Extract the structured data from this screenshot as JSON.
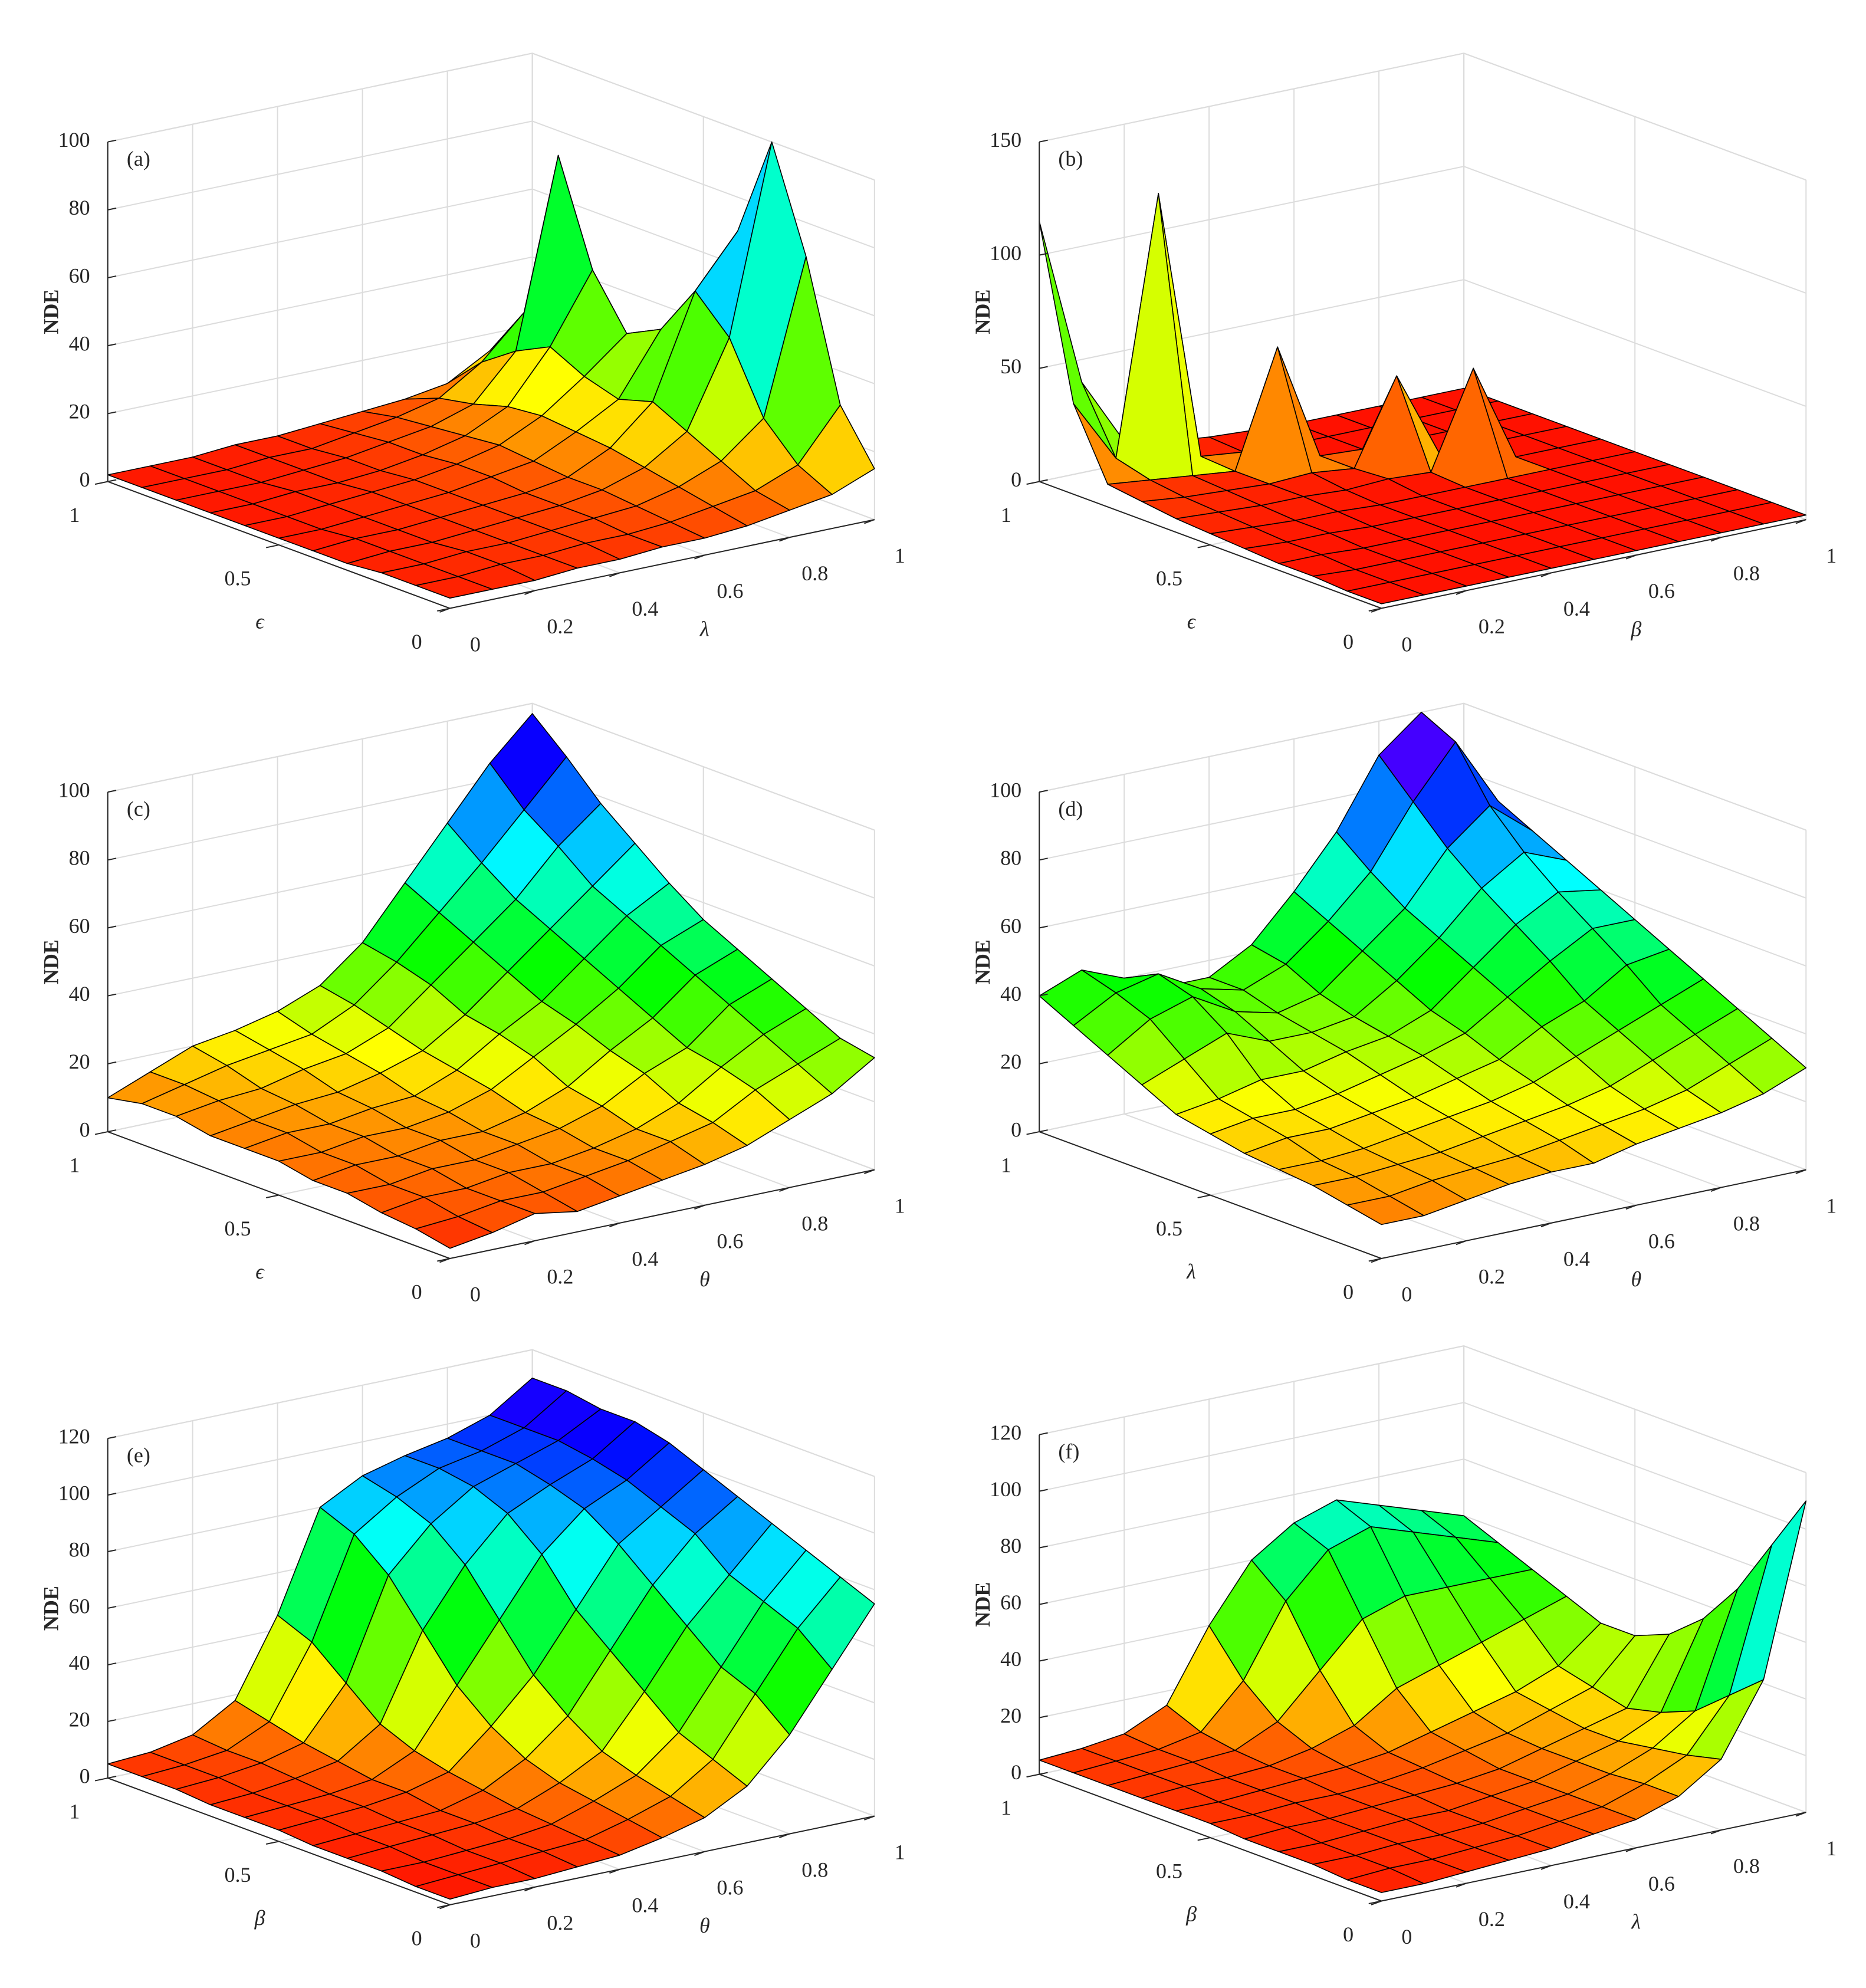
{
  "chart_data": [
    {
      "type": "surface",
      "panel_label": "(a)",
      "zlabel": "NDE",
      "xlabel": "λ",
      "ylabel": "ϵ",
      "colormap": "hsv",
      "grid": true,
      "xlim": [
        0,
        1
      ],
      "ylim": [
        0,
        1
      ],
      "zlim": [
        0,
        100
      ],
      "xticks": [
        0,
        0.2,
        0.4,
        0.6,
        0.8,
        1
      ],
      "yticks": [
        0,
        0.5,
        1
      ],
      "zticks": [
        0,
        20,
        40,
        60,
        80,
        100
      ],
      "x": [
        0,
        0.1,
        0.2,
        0.3,
        0.4,
        0.5,
        0.6,
        0.7,
        0.8,
        0.9,
        1
      ],
      "y": [
        0,
        0.1,
        0.2,
        0.3,
        0.4,
        0.5,
        0.6,
        0.7,
        0.8,
        0.9,
        1
      ],
      "z": [
        [
          3,
          3,
          3,
          4,
          4,
          5,
          5,
          6,
          8,
          10,
          15
        ],
        [
          3,
          3,
          4,
          4,
          5,
          5,
          6,
          8,
          10,
          15,
          30
        ],
        [
          3,
          3,
          4,
          4,
          5,
          6,
          7,
          10,
          15,
          25,
          70
        ],
        [
          2,
          3,
          3,
          4,
          5,
          6,
          8,
          12,
          20,
          45,
          100
        ],
        [
          2,
          3,
          3,
          4,
          5,
          6,
          8,
          14,
          25,
          55,
          70
        ],
        [
          2,
          2,
          3,
          4,
          5,
          7,
          9,
          15,
          22,
          40,
          45
        ],
        [
          2,
          2,
          3,
          4,
          5,
          7,
          10,
          16,
          25,
          35,
          25
        ],
        [
          2,
          2,
          3,
          3,
          4,
          6,
          9,
          15,
          30,
          50,
          15
        ],
        [
          2,
          2,
          2,
          3,
          4,
          6,
          8,
          12,
          25,
          80,
          10
        ],
        [
          2,
          2,
          2,
          3,
          3,
          5,
          7,
          10,
          18,
          30,
          8
        ],
        [
          2,
          2,
          2,
          3,
          3,
          4,
          5,
          6,
          8,
          15,
          5
        ]
      ]
    },
    {
      "type": "surface",
      "panel_label": "(b)",
      "zlabel": "NDE",
      "xlabel": "β",
      "ylabel": "ϵ",
      "colormap": "hsv",
      "grid": true,
      "xlim": [
        0,
        1
      ],
      "ylim": [
        0,
        1
      ],
      "zlim": [
        0,
        150
      ],
      "xticks": [
        0,
        0.2,
        0.4,
        0.6,
        0.8,
        1
      ],
      "yticks": [
        0,
        0.5,
        1
      ],
      "zticks": [
        0,
        50,
        100,
        150
      ],
      "x": [
        0,
        0.1,
        0.2,
        0.3,
        0.4,
        0.5,
        0.6,
        0.7,
        0.8,
        0.9,
        1
      ],
      "y": [
        0,
        0.1,
        0.2,
        0.3,
        0.4,
        0.5,
        0.6,
        0.7,
        0.8,
        0.9,
        1
      ],
      "z": [
        [
          2,
          2,
          2,
          2,
          2,
          2,
          2,
          2,
          2,
          2,
          2
        ],
        [
          2,
          2,
          2,
          2,
          2,
          2,
          2,
          2,
          2,
          2,
          2
        ],
        [
          3,
          2,
          2,
          2,
          2,
          2,
          2,
          2,
          2,
          2,
          2
        ],
        [
          3,
          3,
          2,
          2,
          2,
          2,
          2,
          2,
          2,
          2,
          2
        ],
        [
          4,
          3,
          3,
          2,
          2,
          2,
          2,
          2,
          2,
          2,
          2
        ],
        [
          5,
          4,
          3,
          3,
          2,
          2,
          2,
          2,
          2,
          2,
          2
        ],
        [
          6,
          5,
          4,
          4,
          3,
          4,
          3,
          45,
          2,
          2,
          2
        ],
        [
          8,
          6,
          5,
          4,
          5,
          3,
          40,
          2,
          2,
          2,
          2
        ],
        [
          10,
          8,
          6,
          4,
          55,
          3,
          2,
          2,
          2,
          2,
          2
        ],
        [
          40,
          12,
          125,
          5,
          3,
          2,
          2,
          2,
          2,
          2,
          2
        ],
        [
          115,
          40,
          10,
          6,
          4,
          3,
          2,
          2,
          2,
          2,
          2
        ]
      ]
    },
    {
      "type": "surface",
      "panel_label": "(c)",
      "zlabel": "NDE",
      "xlabel": "θ",
      "ylabel": "ϵ",
      "colormap": "hsv",
      "grid": true,
      "xlim": [
        0,
        1
      ],
      "ylim": [
        0,
        1
      ],
      "zlim": [
        0,
        100
      ],
      "xticks": [
        0,
        0.2,
        0.4,
        0.6,
        0.8,
        1
      ],
      "yticks": [
        0,
        0.5,
        1
      ],
      "zticks": [
        0,
        20,
        40,
        60,
        80,
        100
      ],
      "x": [
        0,
        0.1,
        0.2,
        0.3,
        0.4,
        0.5,
        0.6,
        0.7,
        0.8,
        0.9,
        1
      ],
      "y": [
        0,
        0.1,
        0.2,
        0.3,
        0.4,
        0.5,
        0.6,
        0.7,
        0.8,
        0.9,
        1
      ],
      "z": [
        [
          3,
          5,
          8,
          6,
          8,
          10,
          12,
          15,
          20,
          25,
          33
        ],
        [
          5,
          6,
          8,
          8,
          10,
          12,
          15,
          18,
          25,
          30,
          35
        ],
        [
          6,
          8,
          8,
          10,
          10,
          12,
          15,
          20,
          28,
          35,
          40
        ],
        [
          8,
          8,
          10,
          10,
          12,
          14,
          18,
          25,
          30,
          40,
          45
        ],
        [
          8,
          10,
          10,
          12,
          12,
          15,
          20,
          28,
          35,
          45,
          50
        ],
        [
          10,
          10,
          12,
          12,
          14,
          18,
          25,
          32,
          40,
          50,
          55
        ],
        [
          10,
          12,
          12,
          14,
          15,
          20,
          28,
          35,
          45,
          55,
          62
        ],
        [
          10,
          12,
          14,
          15,
          18,
          22,
          30,
          40,
          50,
          60,
          70
        ],
        [
          12,
          14,
          15,
          18,
          20,
          25,
          35,
          45,
          55,
          68,
          78
        ],
        [
          12,
          15,
          18,
          20,
          22,
          28,
          38,
          50,
          62,
          75,
          88
        ],
        [
          10,
          15,
          20,
          22,
          25,
          30,
          40,
          55,
          70,
          85,
          97
        ]
      ]
    },
    {
      "type": "surface",
      "panel_label": "(d)",
      "zlabel": "NDE",
      "xlabel": "θ",
      "ylabel": "λ",
      "colormap": "hsv",
      "grid": true,
      "xlim": [
        0,
        1
      ],
      "ylim": [
        0,
        1
      ],
      "zlim": [
        0,
        100
      ],
      "xticks": [
        0,
        0.2,
        0.4,
        0.6,
        0.8,
        1
      ],
      "yticks": [
        0,
        0.5,
        1
      ],
      "zticks": [
        0,
        20,
        40,
        60,
        80,
        100
      ],
      "x": [
        0,
        0.1,
        0.2,
        0.3,
        0.4,
        0.5,
        0.6,
        0.7,
        0.8,
        0.9,
        1
      ],
      "y": [
        0,
        0.1,
        0.2,
        0.3,
        0.4,
        0.5,
        0.6,
        0.7,
        0.8,
        0.9,
        1
      ],
      "z": [
        [
          10,
          10,
          12,
          14,
          15,
          15,
          18,
          20,
          22,
          25,
          30
        ],
        [
          12,
          12,
          14,
          15,
          16,
          18,
          20,
          22,
          25,
          30,
          35
        ],
        [
          14,
          14,
          15,
          16,
          18,
          20,
          22,
          25,
          30,
          35,
          40
        ],
        [
          15,
          15,
          16,
          18,
          20,
          22,
          25,
          30,
          35,
          40,
          45
        ],
        [
          16,
          18,
          18,
          20,
          22,
          25,
          28,
          35,
          40,
          48,
          50
        ],
        [
          18,
          20,
          20,
          22,
          25,
          28,
          32,
          40,
          48,
          55,
          55
        ],
        [
          20,
          22,
          25,
          25,
          28,
          30,
          35,
          45,
          55,
          62,
          60
        ],
        [
          25,
          30,
          35,
          30,
          30,
          32,
          40,
          50,
          62,
          70,
          65
        ],
        [
          30,
          38,
          42,
          35,
          32,
          35,
          45,
          55,
          70,
          80,
          70
        ],
        [
          35,
          42,
          45,
          38,
          35,
          40,
          50,
          62,
          80,
          95,
          75
        ],
        [
          40,
          45,
          40,
          35,
          35,
          42,
          55,
          70,
          90,
          100,
          80
        ]
      ]
    },
    {
      "type": "surface",
      "panel_label": "(e)",
      "zlabel": "NDE",
      "xlabel": "θ",
      "ylabel": "β",
      "colormap": "hsv",
      "grid": true,
      "xlim": [
        0,
        1
      ],
      "ylim": [
        0,
        1
      ],
      "zlim": [
        0,
        120
      ],
      "xticks": [
        0,
        0.2,
        0.4,
        0.6,
        0.8,
        1
      ],
      "yticks": [
        0,
        0.5,
        1
      ],
      "zticks": [
        0,
        20,
        40,
        60,
        80,
        100,
        120
      ],
      "x": [
        0,
        0.1,
        0.2,
        0.3,
        0.4,
        0.5,
        0.6,
        0.7,
        0.8,
        0.9,
        1
      ],
      "y": [
        0,
        0.1,
        0.2,
        0.3,
        0.4,
        0.5,
        0.6,
        0.7,
        0.8,
        0.9,
        1
      ],
      "z": [
        [
          2,
          3,
          3,
          4,
          5,
          8,
          12,
          20,
          35,
          55,
          75
        ],
        [
          2,
          3,
          4,
          5,
          6,
          10,
          15,
          25,
          45,
          65,
          80
        ],
        [
          3,
          3,
          4,
          5,
          7,
          12,
          18,
          30,
          50,
          70,
          85
        ],
        [
          3,
          4,
          5,
          6,
          8,
          14,
          22,
          40,
          60,
          75,
          90
        ],
        [
          3,
          4,
          5,
          6,
          10,
          18,
          30,
          50,
          70,
          85,
          95
        ],
        [
          4,
          5,
          6,
          8,
          12,
          25,
          40,
          60,
          80,
          90,
          100
        ],
        [
          4,
          5,
          6,
          8,
          15,
          35,
          55,
          75,
          88,
          95,
          105
        ],
        [
          4,
          5,
          7,
          10,
          20,
          50,
          70,
          85,
          92,
          98,
          108
        ],
        [
          5,
          6,
          8,
          12,
          30,
          65,
          80,
          90,
          95,
          100,
          108
        ],
        [
          5,
          6,
          8,
          15,
          40,
          75,
          85,
          92,
          95,
          100,
          110
        ],
        [
          5,
          6,
          9,
          18,
          45,
          80,
          88,
          92,
          95,
          100,
          110
        ]
      ]
    },
    {
      "type": "surface",
      "panel_label": "(f)",
      "zlabel": "NDE",
      "xlabel": "λ",
      "ylabel": "β",
      "colormap": "hsv",
      "grid": true,
      "xlim": [
        0,
        1
      ],
      "ylim": [
        0,
        1
      ],
      "zlim": [
        0,
        120
      ],
      "xticks": [
        0,
        0.2,
        0.4,
        0.6,
        0.8,
        1
      ],
      "yticks": [
        0,
        0.5,
        1
      ],
      "zticks": [
        0,
        20,
        40,
        60,
        80,
        100,
        120
      ],
      "x": [
        0,
        0.1,
        0.2,
        0.3,
        0.4,
        0.5,
        0.6,
        0.7,
        0.8,
        0.9,
        1
      ],
      "y": [
        0,
        0.1,
        0.2,
        0.3,
        0.4,
        0.5,
        0.6,
        0.7,
        0.8,
        0.9,
        1
      ],
      "z": [
        [
          3,
          3,
          4,
          5,
          6,
          8,
          10,
          15,
          25,
          50,
          110
        ],
        [
          3,
          4,
          4,
          5,
          6,
          8,
          10,
          15,
          22,
          40,
          90
        ],
        [
          4,
          4,
          5,
          5,
          6,
          8,
          10,
          14,
          20,
          30,
          70
        ],
        [
          4,
          4,
          5,
          6,
          6,
          8,
          10,
          14,
          18,
          25,
          55
        ],
        [
          4,
          5,
          5,
          6,
          7,
          8,
          10,
          14,
          18,
          22,
          45
        ],
        [
          5,
          5,
          6,
          6,
          7,
          9,
          12,
          15,
          20,
          25,
          40
        ],
        [
          5,
          5,
          6,
          7,
          8,
          10,
          14,
          18,
          22,
          28,
          40
        ],
        [
          5,
          6,
          6,
          7,
          10,
          15,
          25,
          30,
          35,
          40,
          45
        ],
        [
          5,
          6,
          7,
          8,
          15,
          30,
          45,
          50,
          50,
          50,
          50
        ],
        [
          5,
          6,
          7,
          10,
          25,
          50,
          65,
          70,
          65,
          60,
          55
        ],
        [
          5,
          6,
          8,
          15,
          40,
          60,
          70,
          75,
          70,
          65,
          60
        ]
      ]
    }
  ]
}
